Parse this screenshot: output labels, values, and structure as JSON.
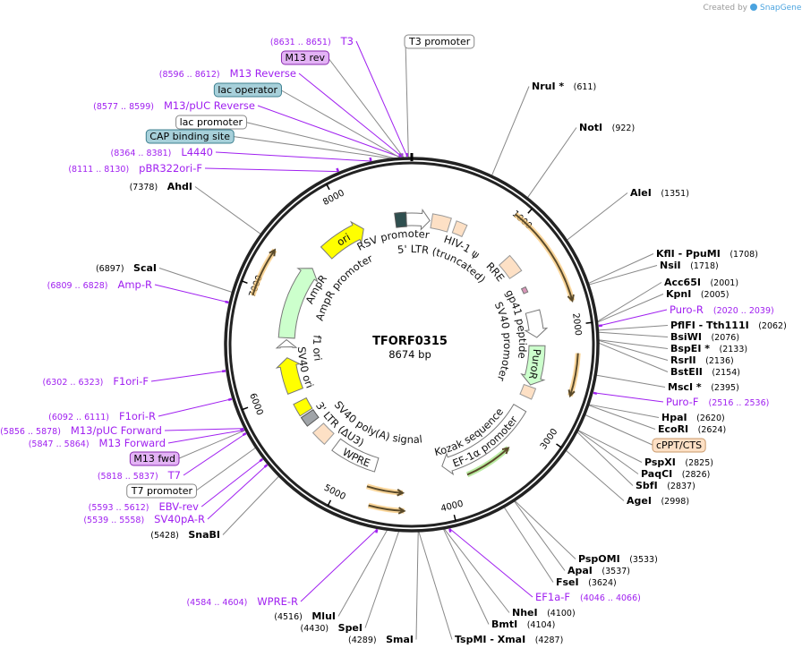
{
  "credit": {
    "created_by": "Created by",
    "brand": "SnapGene"
  },
  "plasmid": {
    "name": "TFORF0315",
    "length": "8674 bp"
  },
  "ticks": [
    "1000",
    "2000",
    "3000",
    "4000",
    "5000",
    "6000",
    "7000",
    "8000"
  ],
  "colors": {
    "primer": "#a020f0",
    "enzyme": "#000000",
    "orf": "#f5b041",
    "ring": "#222222"
  },
  "labels": [
    {
      "kind": "enzyme",
      "name": "NruI *",
      "pos": "(611)"
    },
    {
      "kind": "enzyme",
      "name": "NotI",
      "pos": "(922)"
    },
    {
      "kind": "enzyme",
      "name": "AleI",
      "pos": "(1351)"
    },
    {
      "kind": "enzyme",
      "name": "KflI   - PpuMI",
      "pos": "(1708)"
    },
    {
      "kind": "enzyme",
      "name": "NsiI",
      "pos": "(1718)"
    },
    {
      "kind": "enzyme",
      "name": "Acc65I",
      "pos": "(2001)"
    },
    {
      "kind": "enzyme",
      "name": "KpnI",
      "pos": "(2005)"
    },
    {
      "kind": "primer",
      "name": "Puro-R",
      "pos": "(2020 .. 2039)"
    },
    {
      "kind": "enzyme",
      "name": "PflFI   - Tth111I",
      "pos": "(2062)"
    },
    {
      "kind": "enzyme",
      "name": "BsiWI",
      "pos": "(2076)"
    },
    {
      "kind": "enzyme",
      "name": "BspEI *",
      "pos": "(2133)"
    },
    {
      "kind": "enzyme",
      "name": "RsrII",
      "pos": "(2136)"
    },
    {
      "kind": "enzyme",
      "name": "BstEII",
      "pos": "(2154)"
    },
    {
      "kind": "enzyme",
      "name": "MscI *",
      "pos": "(2395)"
    },
    {
      "kind": "primer",
      "name": "Puro-F",
      "pos": "(2516 .. 2536)"
    },
    {
      "kind": "enzyme",
      "name": "HpaI",
      "pos": "(2620)"
    },
    {
      "kind": "enzyme",
      "name": "EcoRI",
      "pos": "(2624)"
    },
    {
      "kind": "feature",
      "name": "cPPT/CTS",
      "fill": "#fde0c5",
      "stroke": "#c8986a"
    },
    {
      "kind": "enzyme",
      "name": "PspXI",
      "pos": "(2825)"
    },
    {
      "kind": "enzyme",
      "name": "PaqCI",
      "pos": "(2826)"
    },
    {
      "kind": "enzyme",
      "name": "SbfI",
      "pos": "(2837)"
    },
    {
      "kind": "enzyme",
      "name": "AgeI",
      "pos": "(2998)"
    },
    {
      "kind": "enzyme",
      "name": "PspOMI",
      "pos": "(3533)"
    },
    {
      "kind": "enzyme",
      "name": "ApaI",
      "pos": "(3537)"
    },
    {
      "kind": "enzyme",
      "name": "FseI",
      "pos": "(3624)"
    },
    {
      "kind": "primer",
      "name": "EF1a-F",
      "pos": "(4046 .. 4066)"
    },
    {
      "kind": "enzyme",
      "name": "NheI",
      "pos": "(4100)"
    },
    {
      "kind": "enzyme",
      "name": "BmtI",
      "pos": "(4104)"
    },
    {
      "kind": "enzyme",
      "name": "TspMI   - XmaI",
      "pos": "(4287)"
    },
    {
      "kind": "enzyme",
      "name": "SmaI",
      "pos": "(4289)"
    },
    {
      "kind": "enzyme",
      "name": "SpeI",
      "pos": "(4430)"
    },
    {
      "kind": "enzyme",
      "name": "MluI",
      "pos": "(4516)"
    },
    {
      "kind": "primer",
      "name": "WPRE-R",
      "pos": "(4584 .. 4604)"
    },
    {
      "kind": "enzyme",
      "name": "SnaBI",
      "pos": "(5428)"
    },
    {
      "kind": "primer",
      "name": "SV40pA-R",
      "pos": "(5539 .. 5558)"
    },
    {
      "kind": "primer",
      "name": "EBV-rev",
      "pos": "(5593 .. 5612)"
    },
    {
      "kind": "feature",
      "name": "T7 promoter",
      "fill": "#ffffff",
      "stroke": "#888888"
    },
    {
      "kind": "primer",
      "name": "T7",
      "pos": "(5818 .. 5837)"
    },
    {
      "kind": "feature",
      "name": "M13 fwd",
      "fill": "#e3b3f5",
      "stroke": "#8a2ab0"
    },
    {
      "kind": "primer",
      "name": "M13 Forward",
      "pos": "(5847 .. 5864)"
    },
    {
      "kind": "primer",
      "name": "M13/pUC Forward",
      "pos": "(5856 .. 5878)"
    },
    {
      "kind": "primer",
      "name": "F1ori-R",
      "pos": "(6092 .. 6111)"
    },
    {
      "kind": "primer",
      "name": "F1ori-F",
      "pos": "(6302 .. 6323)"
    },
    {
      "kind": "primer",
      "name": "Amp-R",
      "pos": "(6809 .. 6828)"
    },
    {
      "kind": "enzyme",
      "name": "ScaI",
      "pos": "(6897)"
    },
    {
      "kind": "enzyme",
      "name": "AhdI",
      "pos": "(7378)"
    },
    {
      "kind": "primer",
      "name": "pBR322ori-F",
      "pos": "(8111 .. 8130)"
    },
    {
      "kind": "primer",
      "name": "L4440",
      "pos": "(8364 .. 8381)"
    },
    {
      "kind": "feature",
      "name": "CAP binding site",
      "fill": "#a7d0da",
      "stroke": "#3c7f8f"
    },
    {
      "kind": "feature",
      "name": "lac promoter",
      "fill": "#ffffff",
      "stroke": "#888888"
    },
    {
      "kind": "primer",
      "name": "M13/pUC Reverse",
      "pos": "(8577 .. 8599)"
    },
    {
      "kind": "feature",
      "name": "lac operator",
      "fill": "#a7d0da",
      "stroke": "#3c7f8f"
    },
    {
      "kind": "primer",
      "name": "M13 Reverse",
      "pos": "(8596 .. 8612)"
    },
    {
      "kind": "feature",
      "name": "M13 rev",
      "fill": "#e3b3f5",
      "stroke": "#8a2ab0"
    },
    {
      "kind": "primer",
      "name": "T3",
      "pos": "(8631 .. 8651)"
    },
    {
      "kind": "feature",
      "name": "T3 promoter",
      "fill": "#ffffff",
      "stroke": "#888888"
    }
  ],
  "inner_labels": [
    "RSV promoter",
    "5' LTR (truncated)",
    "HIV-1 ψ",
    "RRE",
    "gp41 peptide",
    "SV40 promoter",
    "PuroR",
    "Kozak sequence",
    "EF-1α promoter",
    "WPRE",
    "3' LTR (ΔU3)",
    "SV40 poly(A) signal",
    "SV40 ori",
    "f1 ori",
    "AmpR promoter",
    "AmpR",
    "ori"
  ]
}
